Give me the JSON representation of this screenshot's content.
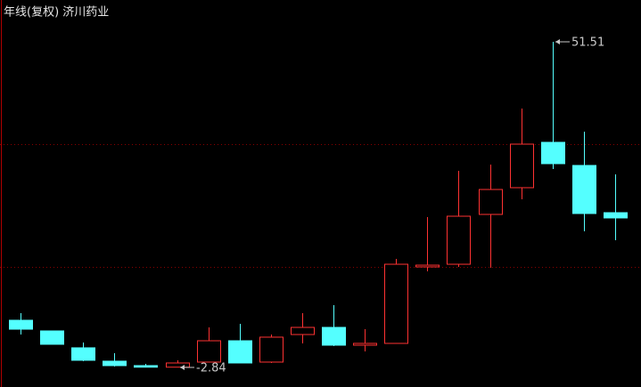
{
  "chart_data": {
    "type": "candlestick",
    "title": "年线(复权) 济川药业",
    "ylim": [
      -6.11,
      58.49
    ],
    "up_color": "#ff3232",
    "down_color": "#54ffff",
    "open": [
      5.03,
      3.25,
      0.43,
      -1.8,
      -2.54,
      -2.8,
      -1.95,
      1.61,
      -1.95,
      2.65,
      3.84,
      0.87,
      1.17,
      13.94,
      14.38,
      22.7,
      27.16,
      34.73,
      30.87,
      22.99
    ],
    "high": [
      6.22,
      3.25,
      1.32,
      -0.47,
      -2.25,
      -1.65,
      3.84,
      4.44,
      2.65,
      6.22,
      7.55,
      3.54,
      15.28,
      22.26,
      29.98,
      31.02,
      40.37,
      51.51,
      36.51,
      29.38
    ],
    "low": [
      2.65,
      1.02,
      -1.8,
      -2.69,
      -2.7,
      -2.84,
      -2.0,
      -2.1,
      -2.1,
      1.17,
      0.72,
      -0.17,
      1.17,
      13.2,
      13.94,
      13.79,
      25.23,
      30.27,
      19.88,
      18.39
    ],
    "close": [
      3.54,
      1.02,
      -1.65,
      -2.54,
      -2.8,
      -2.1,
      1.61,
      -2.1,
      2.21,
      3.84,
      0.87,
      1.17,
      14.38,
      14.23,
      22.4,
      26.86,
      34.43,
      31.17,
      22.85,
      22.11
    ],
    "annotations": [
      {
        "value": 51.51,
        "label": "51.51"
      },
      {
        "value": -2.84,
        "label": "-2.84"
      }
    ]
  }
}
